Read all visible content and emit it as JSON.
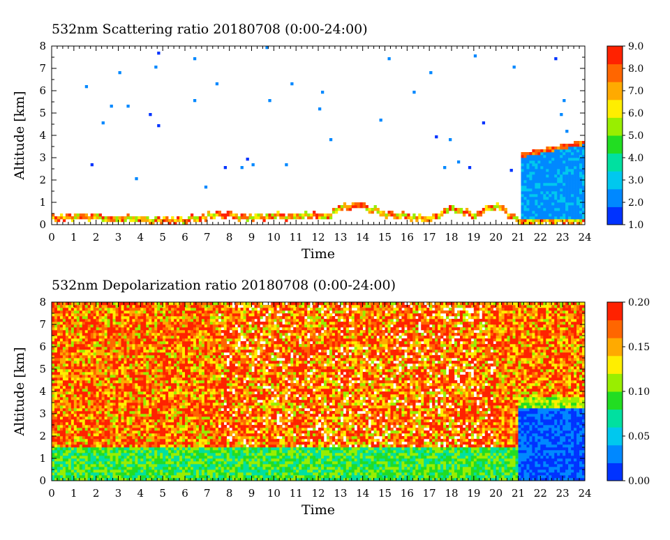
{
  "chart_data": [
    {
      "type": "heatmap",
      "title": "532nm Scattering ratio  20180708 (0:00-24:00)",
      "xlabel": "Time",
      "ylabel": "Altitude [km]",
      "xlim": [
        0,
        24
      ],
      "ylim": [
        0,
        8
      ],
      "x_ticks": [
        "0",
        "1",
        "2",
        "3",
        "4",
        "5",
        "6",
        "7",
        "8",
        "9",
        "10",
        "11",
        "12",
        "13",
        "14",
        "15",
        "16",
        "17",
        "18",
        "19",
        "20",
        "21",
        "22",
        "23",
        "24"
      ],
      "y_ticks": [
        "0",
        "1",
        "2",
        "3",
        "4",
        "5",
        "6",
        "7",
        "8"
      ],
      "colorbar": {
        "min": 1.0,
        "max": 9.0,
        "ticks": [
          "1.0",
          "2.0",
          "3.0",
          "4.0",
          "5.0",
          "6.0",
          "7.0",
          "8.0",
          "9.0"
        ],
        "colors": [
          "#0033ff",
          "#0088ff",
          "#00c8ee",
          "#00e0a0",
          "#22dd22",
          "#99ee00",
          "#ffee00",
          "#ffaa00",
          "#ff6600",
          "#ff2200"
        ]
      },
      "features": [
        {
          "name": "boundary layer top",
          "x": [
            0,
            2,
            3,
            6,
            7.5,
            9,
            10,
            12.5,
            13,
            14,
            15,
            16,
            17,
            18,
            19,
            20,
            21
          ],
          "y": [
            0.42,
            0.45,
            0.38,
            0.35,
            0.55,
            0.45,
            0.5,
            0.55,
            0.9,
            1.0,
            0.6,
            0.5,
            0.35,
            0.9,
            0.5,
            1.0,
            0.3
          ],
          "value": 5.0
        },
        {
          "name": "low cloud",
          "x_range": [
            21.1,
            24
          ],
          "top_start": 3.0,
          "top_end": 3.6,
          "bottom": 0.3,
          "value": 2.0
        }
      ]
    },
    {
      "type": "heatmap",
      "title": "532nm Depolarization ratio  20180708 (0:00-24:00)",
      "xlabel": "Time",
      "ylabel": "Altitude [km]",
      "xlim": [
        0,
        24
      ],
      "ylim": [
        0,
        8
      ],
      "x_ticks": [
        "0",
        "1",
        "2",
        "3",
        "4",
        "5",
        "6",
        "7",
        "8",
        "9",
        "10",
        "11",
        "12",
        "13",
        "14",
        "15",
        "16",
        "17",
        "18",
        "19",
        "20",
        "21",
        "22",
        "23",
        "24"
      ],
      "y_ticks": [
        "0",
        "1",
        "2",
        "3",
        "4",
        "5",
        "6",
        "7",
        "8"
      ],
      "colorbar": {
        "min": 0.0,
        "max": 0.2,
        "ticks": [
          "0.00",
          "0.05",
          "0.10",
          "0.15",
          "0.20"
        ],
        "colors": [
          "#0033ff",
          "#0088ff",
          "#00c8ee",
          "#00e0a0",
          "#22dd22",
          "#99ee00",
          "#ffee00",
          "#ffaa00",
          "#ff6600",
          "#ff2200"
        ]
      },
      "features": [
        {
          "name": "aerosol layer",
          "y_range": [
            0,
            1.5
          ],
          "value": 0.09
        },
        {
          "name": "free troposphere noise",
          "y_range": [
            1.5,
            8
          ],
          "value": 0.18
        },
        {
          "name": "low cloud",
          "x_range": [
            21,
            24
          ],
          "y_range": [
            0,
            3.2
          ],
          "value": 0.01
        }
      ]
    }
  ]
}
